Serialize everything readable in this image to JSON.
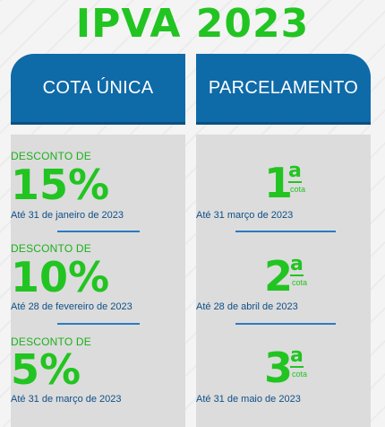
{
  "title": "IPVA 2023",
  "columns": {
    "left": {
      "header": "COTA ÚNICA",
      "items": [
        {
          "label": "DESCONTO DE",
          "value": "15%",
          "date": "Até 31 de janeiro de 2023"
        },
        {
          "label": "DESCONTO DE",
          "value": "10%",
          "date": "Até 28 de fevereiro de 2023"
        },
        {
          "label": "DESCONTO DE",
          "value": "5%",
          "date": "Até 31 de março de 2023"
        }
      ]
    },
    "right": {
      "header": "PARCELAMENTO",
      "items": [
        {
          "number": "1",
          "sup": "a",
          "unit": "cota",
          "date": "Até 31 março de 2023"
        },
        {
          "number": "2",
          "sup": "a",
          "unit": "cota",
          "date": "Até 28 de abril de 2023"
        },
        {
          "number": "3",
          "sup": "a",
          "unit": "cota",
          "date": "Até 31 de maio de 2023"
        }
      ]
    }
  },
  "colors": {
    "green": "#22c421",
    "blue": "#0f6aa8",
    "dark_blue_text": "#0f4f86",
    "panel": "#dcdcdc"
  }
}
